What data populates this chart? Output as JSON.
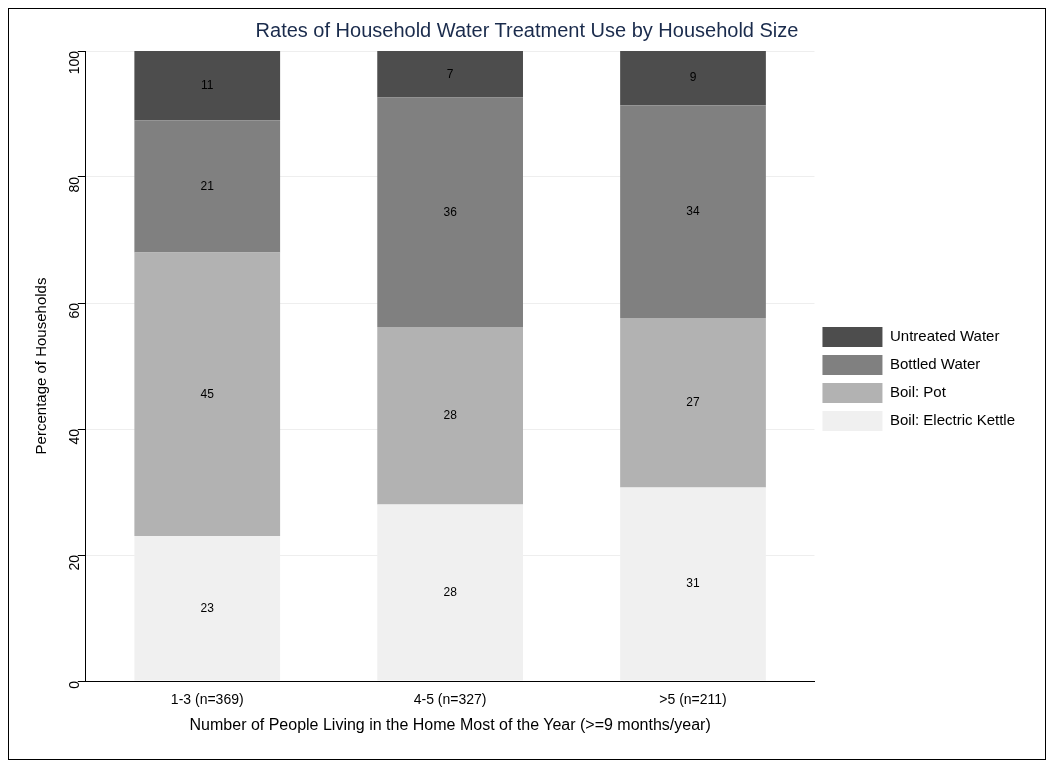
{
  "chart_data": {
    "type": "bar",
    "title": "Rates of Household Water Treatment Use by Household Size",
    "xlabel": "Number of People Living in the Home Most of the Year (>=9 months/year)",
    "ylabel": "Percentage of Households",
    "categories": [
      "1-3 (n=369)",
      "4-5 (n=327)",
      ">5 (n=211)"
    ],
    "series": [
      {
        "name": "Boil: Electric Kettle",
        "color": "#f0f0f0",
        "values": [
          23,
          28,
          30.7
        ],
        "value_labels": [
          "23",
          "28",
          "31"
        ]
      },
      {
        "name": "Boil: Pot",
        "color": "#b2b2b2",
        "values": [
          45,
          28.2,
          26.9
        ],
        "value_labels": [
          "45",
          "28",
          "27"
        ]
      },
      {
        "name": "Bottled Water",
        "color": "#808080",
        "values": [
          21,
          36.4,
          33.8
        ],
        "value_labels": [
          "21",
          "36",
          "34"
        ]
      },
      {
        "name": "Untreated Water",
        "color": "#4d4d4d",
        "values": [
          11,
          7.4,
          8.6
        ],
        "value_labels": [
          "11",
          "7",
          "9"
        ]
      }
    ],
    "stacked": true,
    "ylim": [
      0,
      100
    ],
    "yticks": [
      0,
      20,
      40,
      60,
      80,
      100
    ],
    "grid": "y",
    "legend": "right"
  }
}
